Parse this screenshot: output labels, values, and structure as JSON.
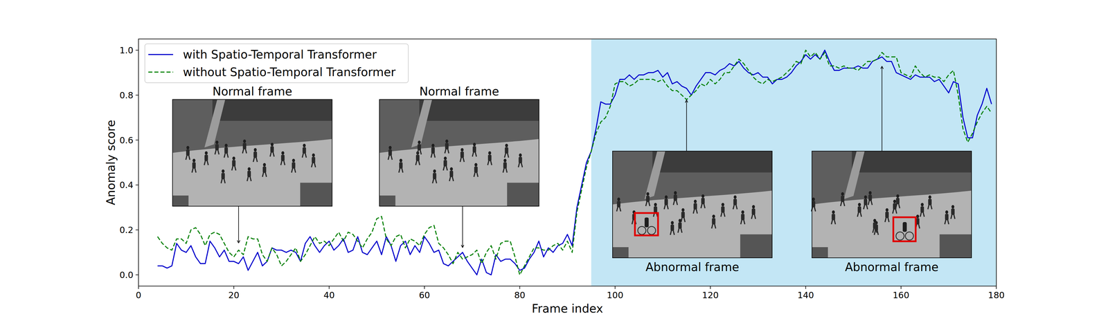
{
  "chart_data": {
    "type": "line",
    "xlabel": "Frame index",
    "ylabel": "Anomaly score",
    "xlim": [
      0,
      180
    ],
    "ylim": [
      -0.05,
      1.05
    ],
    "xticks": [
      0,
      20,
      40,
      60,
      80,
      100,
      120,
      140,
      160,
      180
    ],
    "yticks": [
      {
        "value": 0,
        "label": "0.0"
      },
      0.2,
      0.4,
      0.6,
      0.8,
      {
        "value": 1,
        "label": "1.0"
      }
    ],
    "legend": "upper left",
    "grid": false,
    "shaded_region": {
      "x": [
        95,
        180
      ],
      "color": "#c3e6f5"
    },
    "x": [
      4,
      5,
      6,
      7,
      8,
      9,
      10,
      11,
      12,
      13,
      14,
      15,
      16,
      17,
      18,
      19,
      20,
      21,
      22,
      23,
      24,
      25,
      26,
      27,
      28,
      29,
      30,
      31,
      32,
      33,
      34,
      35,
      36,
      37,
      38,
      39,
      40,
      41,
      42,
      43,
      44,
      45,
      46,
      47,
      48,
      49,
      50,
      51,
      52,
      53,
      54,
      55,
      56,
      57,
      58,
      59,
      60,
      61,
      62,
      63,
      64,
      65,
      66,
      67,
      68,
      69,
      70,
      71,
      72,
      73,
      74,
      75,
      76,
      77,
      78,
      79,
      80,
      81,
      82,
      83,
      84,
      85,
      86,
      87,
      88,
      89,
      90,
      91,
      92,
      93,
      94,
      95,
      96,
      97,
      98,
      99,
      100,
      101,
      102,
      103,
      104,
      105,
      106,
      107,
      108,
      109,
      110,
      111,
      112,
      113,
      114,
      115,
      116,
      117,
      118,
      119,
      120,
      121,
      122,
      123,
      124,
      125,
      126,
      127,
      128,
      129,
      130,
      131,
      132,
      133,
      134,
      135,
      136,
      137,
      138,
      139,
      140,
      141,
      142,
      143,
      144,
      145,
      146,
      147,
      148,
      149,
      150,
      151,
      152,
      153,
      154,
      155,
      156,
      157,
      158,
      159,
      160,
      161,
      162,
      163,
      164,
      165,
      166,
      167,
      168,
      169,
      170,
      171,
      172,
      173,
      174,
      175,
      176,
      177,
      178,
      179
    ],
    "series": [
      {
        "name": "with Spatio-Temporal Transformer",
        "color": "#0000cc",
        "line_style": "solid",
        "values": [
          0.04,
          0.04,
          0.03,
          0.04,
          0.14,
          0.11,
          0.1,
          0.13,
          0.08,
          0.05,
          0.05,
          0.15,
          0.12,
          0.08,
          0.11,
          0.06,
          0.06,
          0.05,
          0.08,
          0.02,
          0.06,
          0.1,
          0.04,
          0.06,
          0.12,
          0.11,
          0.11,
          0.1,
          0.11,
          0.1,
          0.06,
          0.14,
          0.17,
          0.13,
          0.1,
          0.13,
          0.15,
          0.11,
          0.13,
          0.16,
          0.1,
          0.11,
          0.17,
          0.1,
          0.09,
          0.12,
          0.15,
          0.09,
          0.17,
          0.13,
          0.06,
          0.13,
          0.15,
          0.09,
          0.13,
          0.1,
          0.17,
          0.14,
          0.1,
          0.11,
          0.05,
          0.04,
          0.06,
          0.08,
          0.1,
          0.06,
          0.03,
          0.0,
          0.07,
          0.01,
          0.0,
          0.09,
          0.06,
          0.07,
          0.07,
          0.05,
          0.02,
          0.03,
          0.07,
          0.1,
          0.15,
          0.08,
          0.12,
          0.1,
          0.13,
          0.14,
          0.18,
          0.13,
          0.3,
          0.4,
          0.5,
          0.55,
          0.65,
          0.77,
          0.76,
          0.76,
          0.8,
          0.87,
          0.87,
          0.89,
          0.87,
          0.89,
          0.89,
          0.9,
          0.9,
          0.91,
          0.88,
          0.9,
          0.85,
          0.86,
          0.84,
          0.83,
          0.8,
          0.84,
          0.87,
          0.9,
          0.9,
          0.89,
          0.91,
          0.92,
          0.94,
          0.93,
          0.95,
          0.92,
          0.9,
          0.89,
          0.9,
          0.88,
          0.88,
          0.85,
          0.87,
          0.87,
          0.88,
          0.9,
          0.93,
          0.95,
          0.98,
          0.96,
          0.98,
          0.96,
          1.0,
          0.95,
          0.91,
          0.91,
          0.92,
          0.92,
          0.92,
          0.93,
          0.92,
          0.92,
          0.95,
          0.96,
          0.97,
          0.95,
          0.95,
          0.9,
          0.89,
          0.88,
          0.87,
          0.89,
          0.88,
          0.88,
          0.88,
          0.86,
          0.87,
          0.84,
          0.81,
          0.86,
          0.85,
          0.7,
          0.61,
          0.61,
          0.71,
          0.76,
          0.83,
          0.76
        ]
      },
      {
        "name": "without Spatio-Temporal Transformer",
        "color": "#008000",
        "line_style": "dashed",
        "values": [
          0.17,
          0.14,
          0.12,
          0.11,
          0.16,
          0.16,
          0.14,
          0.2,
          0.21,
          0.18,
          0.13,
          0.18,
          0.19,
          0.18,
          0.14,
          0.1,
          0.08,
          0.11,
          0.09,
          0.17,
          0.16,
          0.16,
          0.09,
          0.06,
          0.12,
          0.09,
          0.04,
          0.06,
          0.09,
          0.12,
          0.06,
          0.09,
          0.13,
          0.17,
          0.14,
          0.15,
          0.13,
          0.16,
          0.19,
          0.15,
          0.19,
          0.18,
          0.15,
          0.12,
          0.16,
          0.19,
          0.25,
          0.26,
          0.16,
          0.13,
          0.17,
          0.18,
          0.12,
          0.16,
          0.15,
          0.13,
          0.18,
          0.21,
          0.22,
          0.14,
          0.12,
          0.09,
          0.05,
          0.1,
          0.07,
          0.08,
          0.09,
          0.11,
          0.05,
          0.1,
          0.13,
          0.07,
          0.14,
          0.15,
          0.15,
          0.08,
          0.0,
          0.04,
          0.08,
          0.12,
          0.12,
          0.11,
          0.11,
          0.13,
          0.14,
          0.11,
          0.15,
          0.1,
          0.28,
          0.38,
          0.48,
          0.55,
          0.63,
          0.68,
          0.7,
          0.75,
          0.85,
          0.86,
          0.86,
          0.84,
          0.85,
          0.87,
          0.87,
          0.87,
          0.87,
          0.86,
          0.87,
          0.84,
          0.82,
          0.82,
          0.8,
          0.78,
          0.8,
          0.82,
          0.85,
          0.84,
          0.87,
          0.85,
          0.87,
          0.9,
          0.9,
          0.93,
          0.96,
          0.94,
          0.91,
          0.88,
          0.86,
          0.85,
          0.87,
          0.86,
          0.87,
          0.88,
          0.9,
          0.92,
          0.95,
          0.94,
          1.0,
          0.97,
          0.99,
          0.96,
          0.99,
          0.93,
          0.93,
          0.92,
          0.93,
          0.92,
          0.92,
          0.91,
          0.93,
          0.95,
          0.95,
          0.96,
          0.99,
          0.97,
          0.97,
          0.97,
          0.9,
          0.89,
          0.88,
          0.93,
          0.9,
          0.88,
          0.89,
          0.88,
          0.88,
          0.86,
          0.89,
          0.91,
          0.8,
          0.65,
          0.59,
          0.63,
          0.68,
          0.72,
          0.75,
          0.72
        ]
      }
    ],
    "annotations": [
      {
        "text": "Normal frame",
        "x": 21,
        "y": 0.14,
        "highlight": false
      },
      {
        "text": "Normal frame",
        "x": 68,
        "y": 0.12,
        "highlight": false
      },
      {
        "text": "Abnormal frame",
        "x": 115,
        "y": 0.78,
        "highlight": true
      },
      {
        "text": "Abnormal frame",
        "x": 156,
        "y": 0.93,
        "highlight": true
      }
    ]
  }
}
